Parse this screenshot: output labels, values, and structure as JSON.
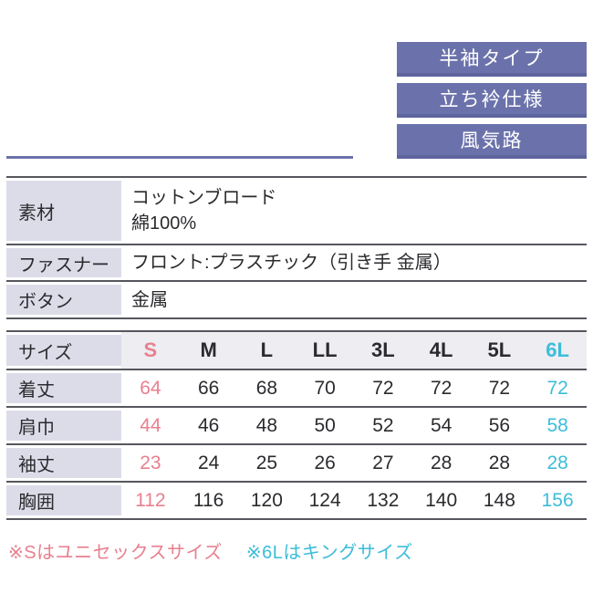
{
  "colors": {
    "badge_purple": "#6b72ab",
    "badge_bottom_edge": "#5d649e",
    "pink_accent": "#e8808f",
    "cyan_accent": "#3cbdd9",
    "label_cell_bg": "#dcdce9",
    "size_header_row_bg": "#ededf2",
    "table_border": "#56575e",
    "text": "#2b2b2f"
  },
  "feature_badges": [
    {
      "label": "半袖タイプ"
    },
    {
      "label": "立ち衿仕様"
    },
    {
      "label": "風気路"
    }
  ],
  "spec_table": {
    "rows": [
      {
        "label": "素材",
        "line1": "コットンブロード",
        "line2": "綿100%"
      },
      {
        "label": "ファスナー",
        "line1": "フロント:プラスチック（引き手 金属）"
      },
      {
        "label": "ボタン",
        "line1": "金属"
      }
    ]
  },
  "size_table": {
    "header_label": "サイズ",
    "sizes": [
      "S",
      "M",
      "L",
      "LL",
      "3L",
      "4L",
      "5L",
      "6L"
    ],
    "rows": [
      {
        "label": "着丈",
        "values": [
          "64",
          "66",
          "68",
          "70",
          "72",
          "72",
          "72",
          "72"
        ]
      },
      {
        "label": "肩巾",
        "values": [
          "44",
          "46",
          "48",
          "50",
          "52",
          "54",
          "56",
          "58"
        ]
      },
      {
        "label": "袖丈",
        "values": [
          "23",
          "24",
          "25",
          "26",
          "27",
          "28",
          "28",
          "28"
        ]
      },
      {
        "label": "胸囲",
        "values": [
          "112",
          "116",
          "120",
          "124",
          "132",
          "140",
          "148",
          "156"
        ]
      }
    ]
  },
  "notes": [
    {
      "text": "※Sはユニセックスサイズ"
    },
    {
      "text": "※6Lはキングサイズ"
    }
  ],
  "chart_data": {
    "type": "table",
    "columns": [
      "サイズ",
      "S",
      "M",
      "L",
      "LL",
      "3L",
      "4L",
      "5L",
      "6L"
    ],
    "rows": [
      [
        "着丈",
        64,
        66,
        68,
        70,
        72,
        72,
        72,
        72
      ],
      [
        "肩巾",
        44,
        46,
        48,
        50,
        52,
        54,
        56,
        58
      ],
      [
        "袖丈",
        23,
        24,
        25,
        26,
        27,
        28,
        28,
        28
      ],
      [
        "胸囲",
        112,
        116,
        120,
        124,
        132,
        140,
        148,
        156
      ]
    ]
  }
}
